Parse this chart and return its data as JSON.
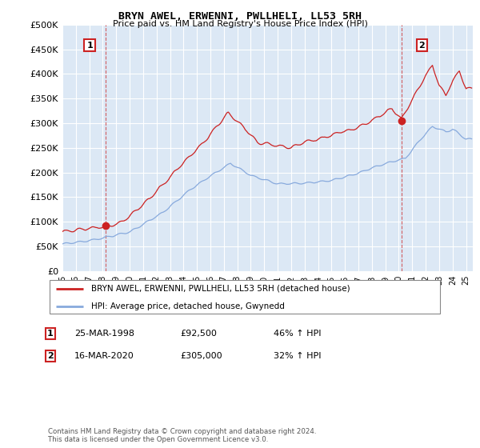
{
  "title": "BRYN AWEL, ERWENNI, PWLLHELI, LL53 5RH",
  "subtitle": "Price paid vs. HM Land Registry's House Price Index (HPI)",
  "legend_label_red": "BRYN AWEL, ERWENNI, PWLLHELI, LL53 5RH (detached house)",
  "legend_label_blue": "HPI: Average price, detached house, Gwynedd",
  "annotation1_date": "25-MAR-1998",
  "annotation1_price": "£92,500",
  "annotation1_hpi": "46% ↑ HPI",
  "annotation2_date": "16-MAR-2020",
  "annotation2_price": "£305,000",
  "annotation2_hpi": "32% ↑ HPI",
  "footnote": "Contains HM Land Registry data © Crown copyright and database right 2024.\nThis data is licensed under the Open Government Licence v3.0.",
  "ylim": [
    0,
    500000
  ],
  "yticks": [
    0,
    50000,
    100000,
    150000,
    200000,
    250000,
    300000,
    350000,
    400000,
    450000,
    500000
  ],
  "xlim_start": 1995.0,
  "xlim_end": 2025.5,
  "red_color": "#cc2222",
  "blue_color": "#88aadd",
  "marker1_x": 1998.23,
  "marker1_y": 92500,
  "marker2_x": 2020.21,
  "marker2_y": 305000,
  "chart_bg_color": "#dce8f5",
  "background_color": "#ffffff",
  "grid_color": "#ffffff"
}
